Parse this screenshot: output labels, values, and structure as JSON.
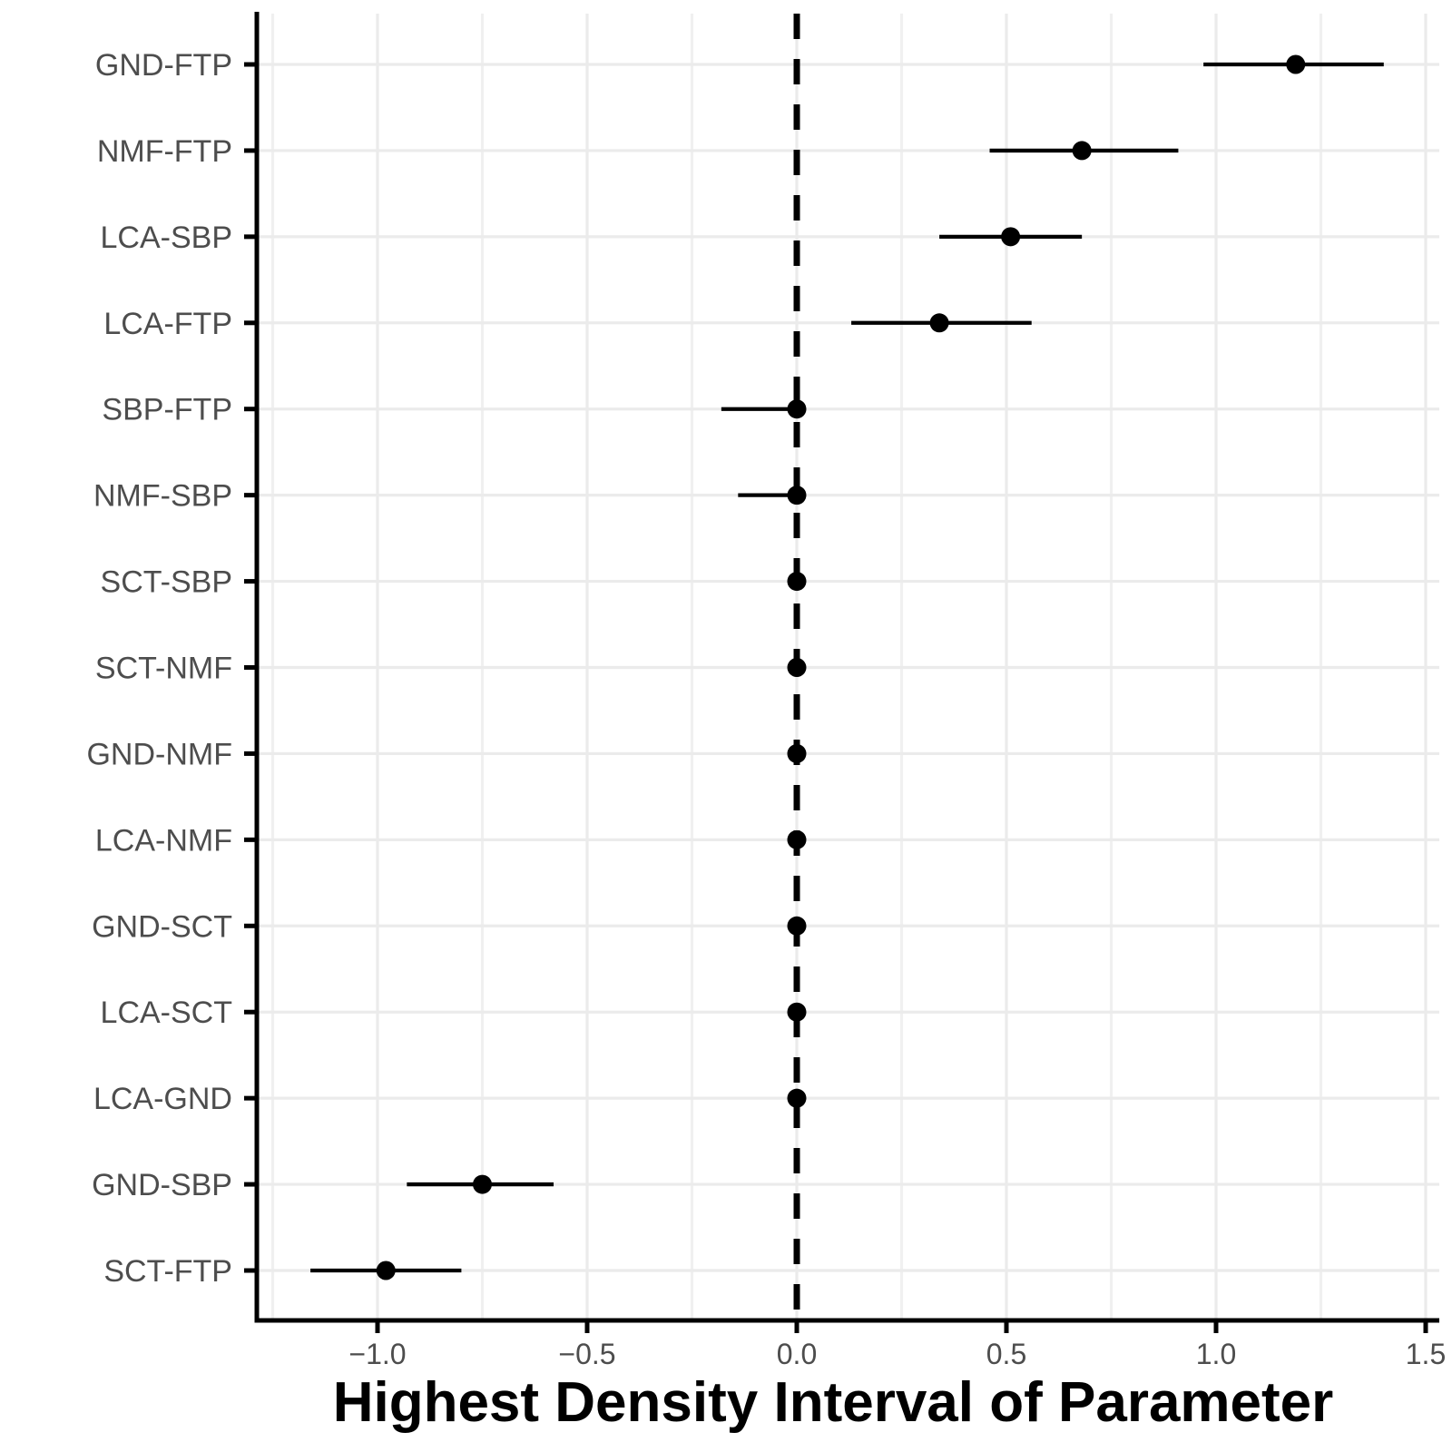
{
  "chart_data": {
    "type": "scatter",
    "variant": "forest-interval-plot",
    "title": "",
    "xlabel": "Highest Density Interval of Parameter",
    "ylabel": "",
    "categories": [
      "GND-FTP",
      "NMF-FTP",
      "LCA-SBP",
      "LCA-FTP",
      "SBP-FTP",
      "NMF-SBP",
      "SCT-SBP",
      "SCT-NMF",
      "GND-NMF",
      "LCA-NMF",
      "GND-SCT",
      "LCA-SCT",
      "LCA-GND",
      "GND-SBP",
      "SCT-FTP"
    ],
    "series": [
      {
        "name": "hdi-intervals",
        "points": [
          {
            "label": "GND-FTP",
            "lo": 0.97,
            "hi": 1.4,
            "estimate": 1.19
          },
          {
            "label": "NMF-FTP",
            "lo": 0.46,
            "hi": 0.91,
            "estimate": 0.68
          },
          {
            "label": "LCA-SBP",
            "lo": 0.34,
            "hi": 0.68,
            "estimate": 0.51
          },
          {
            "label": "LCA-FTP",
            "lo": 0.13,
            "hi": 0.56,
            "estimate": 0.34
          },
          {
            "label": "SBP-FTP",
            "lo": -0.18,
            "hi": 0.02,
            "estimate": 0.0
          },
          {
            "label": "NMF-SBP",
            "lo": -0.14,
            "hi": 0.02,
            "estimate": 0.0
          },
          {
            "label": "SCT-SBP",
            "lo": -0.02,
            "hi": 0.02,
            "estimate": 0.0
          },
          {
            "label": "SCT-NMF",
            "lo": -0.02,
            "hi": 0.02,
            "estimate": 0.0
          },
          {
            "label": "GND-NMF",
            "lo": -0.01,
            "hi": 0.01,
            "estimate": 0.0
          },
          {
            "label": "LCA-NMF",
            "lo": -0.02,
            "hi": 0.02,
            "estimate": 0.0
          },
          {
            "label": "GND-SCT",
            "lo": -0.01,
            "hi": 0.01,
            "estimate": 0.0
          },
          {
            "label": "LCA-SCT",
            "lo": -0.02,
            "hi": 0.02,
            "estimate": 0.0
          },
          {
            "label": "LCA-GND",
            "lo": -0.01,
            "hi": 0.01,
            "estimate": 0.0
          },
          {
            "label": "GND-SBP",
            "lo": -0.93,
            "hi": -0.58,
            "estimate": -0.75
          },
          {
            "label": "SCT-FTP",
            "lo": -1.16,
            "hi": -0.8,
            "estimate": -0.98
          }
        ]
      }
    ],
    "x_axis": {
      "range": [
        -1.29,
        1.53
      ],
      "ticks": [
        -1.0,
        -0.5,
        0.0,
        0.5,
        1.0,
        1.5
      ],
      "tick_labels": [
        "−1.0",
        "−0.5",
        "0.0",
        "0.5",
        "1.0",
        "1.5"
      ],
      "minor_ticks": [
        -1.25,
        -0.75,
        -0.25,
        0.25,
        0.75,
        1.25
      ]
    },
    "reference_line": {
      "x": 0.0,
      "style": "dashed"
    },
    "grid": "on",
    "legend": "none",
    "colors": {
      "point": "#000000",
      "interval_line": "#000000",
      "reference_line": "#000000",
      "axis_line": "#000000",
      "tick_color": "#000000",
      "axis_text": "#4d4d4d",
      "axis_title": "#000000",
      "grid_major": "#ebebeb",
      "grid_minor": "#f0f0f0",
      "background": "#ffffff"
    }
  }
}
